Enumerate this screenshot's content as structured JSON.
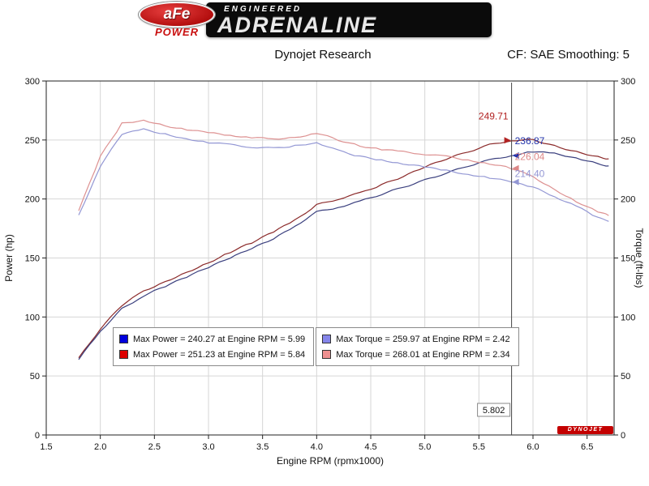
{
  "brand": {
    "logo_text": "aFe",
    "logo_sub": "POWER",
    "tagline_top": "ENGINEERED",
    "tagline_main": "ADRENALINE"
  },
  "header": {
    "title": "Dynojet Research",
    "smoothing": "CF: SAE Smoothing: 5"
  },
  "chart_data": {
    "type": "line",
    "xlabel": "Engine RPM (rpmx1000)",
    "ylabel_left": "Power (hp)",
    "ylabel_right": "Torque (ft-lbs)",
    "xlim": [
      1.5,
      6.75
    ],
    "ylim": [
      0,
      300
    ],
    "xticks": [
      1.5,
      2.0,
      2.5,
      3.0,
      3.5,
      4.0,
      4.5,
      5.0,
      5.5,
      6.0,
      6.5
    ],
    "yticks": [
      0,
      50,
      100,
      150,
      200,
      250,
      300
    ],
    "grid": true,
    "x": [
      1.8,
      2.0,
      2.2,
      2.4,
      2.6,
      2.8,
      3.0,
      3.2,
      3.4,
      3.6,
      3.8,
      4.0,
      4.2,
      4.4,
      4.6,
      4.8,
      5.0,
      5.2,
      5.4,
      5.6,
      5.8,
      6.0,
      6.2,
      6.4,
      6.6,
      6.7
    ],
    "series": [
      {
        "name": "power-run-2",
        "axis": "left",
        "color": "#8b2a2a",
        "values": [
          65,
          90,
          110,
          122,
          130,
          138,
          146,
          155,
          163,
          172,
          182,
          195,
          200,
          205,
          212,
          219,
          227,
          234,
          240,
          246,
          249.7,
          250.3,
          245,
          240,
          236,
          234
        ]
      },
      {
        "name": "power-run-1",
        "axis": "left",
        "color": "#3a3f7e",
        "values": [
          64,
          88,
          107,
          118,
          126,
          134,
          142,
          150,
          158,
          166,
          177,
          189,
          193,
          198,
          204,
          210,
          216,
          222,
          228,
          233,
          236.9,
          240.2,
          238.5,
          235,
          230,
          228
        ]
      },
      {
        "name": "torque-run-2",
        "axis": "right",
        "color": "#dd9191",
        "values": [
          190,
          236,
          264,
          267,
          262,
          259,
          256,
          254,
          252,
          251,
          252,
          256,
          250,
          245,
          242,
          240,
          238,
          236,
          233,
          230,
          226,
          219,
          208,
          198,
          189,
          186
        ]
      },
      {
        "name": "torque-run-1",
        "axis": "right",
        "color": "#9397d4",
        "values": [
          186,
          228,
          255,
          259,
          255,
          251,
          248,
          246,
          244,
          243,
          245,
          248,
          241,
          236,
          233,
          230,
          227,
          224,
          221,
          218,
          214.4,
          210,
          202,
          194,
          184,
          181
        ]
      }
    ],
    "cursor": {
      "x": 5.802,
      "label": "5.802",
      "values": [
        {
          "text": "249.71",
          "color": "#b22222",
          "value": 249.71
        },
        {
          "text": "236.87",
          "color": "#2233aa",
          "value": 236.87
        },
        {
          "text": "226.04",
          "color": "#dd8888",
          "value": 226.04
        },
        {
          "text": "214.40",
          "color": "#9397d4",
          "value": 214.4
        }
      ]
    },
    "legend": [
      {
        "swatch": "#0000dd",
        "label": "Max Power = 240.27 at Engine RPM = 5.99"
      },
      {
        "swatch": "#dd0000",
        "label": "Max Power = 251.23 at Engine RPM = 5.84"
      },
      {
        "swatch": "#8585ea",
        "label": "Max Torque = 259.97 at Engine RPM = 2.42"
      },
      {
        "swatch": "#ef9090",
        "label": "Max Torque = 268.01 at Engine RPM = 2.34"
      }
    ]
  },
  "footer_badge": "DYNOJET"
}
